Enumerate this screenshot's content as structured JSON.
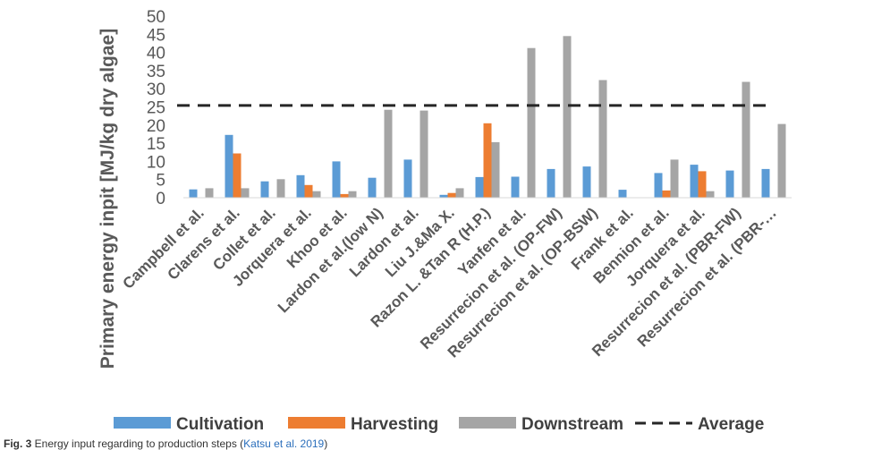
{
  "chart_data": {
    "type": "bar",
    "title": "",
    "ylabel": "Primary energy inpit [MJ/kg dry algae]",
    "xlabel": "",
    "ylim": [
      0,
      50
    ],
    "yticks": [
      0,
      5,
      10,
      15,
      20,
      25,
      30,
      35,
      40,
      45,
      50
    ],
    "grid": false,
    "legend_position": "bottom",
    "categories": [
      "Campbell et al.",
      "Clarens et al.",
      "Collet et al.",
      "Jorquera et al.",
      "Khoo et al.",
      "Lardon et al.(low N)",
      "Lardon et al.",
      "Liu J.&Ma X.",
      "Razon L. &Tan R (H.P.)",
      "Yanfen et al.",
      "Resurrecion et al. (OP-FW)",
      "Resurrecion et al. (OP-BSW)",
      "Frank et al.",
      "Bennion et al.",
      "Jorquera et al.",
      "Resurrecion et al. (PBR-FW)",
      "Resurrecion et al. (PBR-…"
    ],
    "series": [
      {
        "name": "Cultivation",
        "color": "#5b9bd5",
        "values": [
          2.3,
          17.3,
          4.5,
          6.2,
          10.0,
          5.5,
          10.5,
          0.8,
          5.7,
          5.8,
          7.9,
          8.6,
          2.2,
          6.8,
          9.1,
          7.5,
          7.9
        ]
      },
      {
        "name": "Harvesting",
        "color": "#ed7d31",
        "values": [
          0,
          12.2,
          0,
          3.5,
          1.0,
          0,
          0,
          1.3,
          20.5,
          0,
          0,
          0,
          0,
          2.0,
          7.3,
          0,
          0
        ]
      },
      {
        "name": "Downstream",
        "color": "#a5a5a5",
        "values": [
          2.6,
          2.6,
          5.1,
          1.8,
          1.8,
          24.2,
          24.0,
          2.6,
          15.3,
          41.2,
          44.5,
          32.4,
          0,
          10.5,
          1.8,
          31.9,
          20.3
        ]
      }
    ],
    "average": {
      "name": "Average",
      "value": 25.4,
      "color": "#262626",
      "style": "dashed"
    }
  },
  "caption": {
    "label": "Fig. 3",
    "text": " Energy input regarding to production steps (",
    "citation": "Katsu et al. 2019",
    "tail": ")"
  }
}
